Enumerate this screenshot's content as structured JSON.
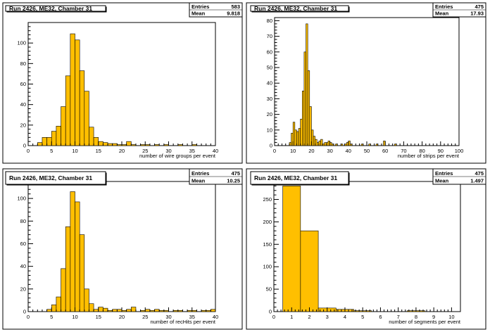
{
  "panels": [
    {
      "title": "Run 2426, ME32, Chamber 31",
      "stats": {
        "entries_label": "Entries",
        "entries": "583",
        "mean_label": "Mean",
        "mean": "9.818"
      }
    },
    {
      "title": "Run 2426, ME32, Chamber 31",
      "stats": {
        "entries_label": "Entries",
        "entries": "475",
        "mean_label": "Mean",
        "mean": "17.93"
      }
    },
    {
      "title": "Run 2426, ME32, Chamber 31",
      "stats": {
        "entries_label": "Entries",
        "entries": "475",
        "mean_label": "Mean",
        "mean": "10.25"
      }
    },
    {
      "title": "Run 2426, ME32, Chamber 31",
      "stats": {
        "entries_label": "Entries",
        "entries": "475",
        "mean_label": "Mean",
        "mean": "1.497"
      }
    }
  ],
  "chart_data": [
    {
      "type": "bar",
      "subtype": "histogram",
      "xlabel": "number of wire groups per event",
      "ylabel": "",
      "xlim": [
        0,
        40
      ],
      "ylim": [
        0,
        120
      ],
      "x_ticks": [
        0,
        5,
        10,
        15,
        20,
        25,
        30,
        35,
        40
      ],
      "y_ticks": [
        0,
        20,
        40,
        60,
        80,
        100
      ],
      "bin_width": 1,
      "bins": [
        [
          0,
          0
        ],
        [
          1,
          0
        ],
        [
          2,
          3
        ],
        [
          3,
          8
        ],
        [
          4,
          8
        ],
        [
          5,
          14
        ],
        [
          6,
          19
        ],
        [
          7,
          38
        ],
        [
          8,
          68
        ],
        [
          9,
          109
        ],
        [
          10,
          103
        ],
        [
          11,
          73
        ],
        [
          12,
          53
        ],
        [
          13,
          18
        ],
        [
          14,
          8
        ],
        [
          15,
          4
        ],
        [
          16,
          3
        ],
        [
          17,
          2
        ],
        [
          18,
          2
        ],
        [
          19,
          1
        ],
        [
          20,
          1
        ],
        [
          21,
          4
        ],
        [
          22,
          1
        ],
        [
          23,
          0
        ],
        [
          24,
          1
        ],
        [
          25,
          1
        ],
        [
          26,
          0
        ],
        [
          27,
          1
        ],
        [
          28,
          0
        ],
        [
          29,
          1
        ],
        [
          30,
          0
        ],
        [
          31,
          0
        ],
        [
          32,
          1
        ],
        [
          33,
          0
        ],
        [
          34,
          0
        ],
        [
          35,
          1
        ],
        [
          36,
          0
        ],
        [
          37,
          0
        ],
        [
          38,
          0
        ],
        [
          39,
          0
        ]
      ],
      "fill_color": "#ffbf00",
      "stroke_color": "#000000",
      "grid": false
    },
    {
      "type": "bar",
      "subtype": "histogram",
      "xlabel": "number of strips per event",
      "ylabel": "",
      "xlim": [
        0,
        100
      ],
      "ylim": [
        0,
        82
      ],
      "x_ticks": [
        0,
        10,
        20,
        30,
        40,
        50,
        60,
        70,
        80,
        90,
        100
      ],
      "y_ticks": [
        0,
        10,
        20,
        30,
        40,
        50,
        60,
        70,
        80
      ],
      "bin_width": 1,
      "bins": [
        [
          8,
          2
        ],
        [
          9,
          8
        ],
        [
          10,
          15
        ],
        [
          11,
          10
        ],
        [
          12,
          9
        ],
        [
          13,
          11
        ],
        [
          14,
          17
        ],
        [
          15,
          35
        ],
        [
          16,
          60
        ],
        [
          17,
          78
        ],
        [
          18,
          48
        ],
        [
          19,
          25
        ],
        [
          20,
          10
        ],
        [
          21,
          6
        ],
        [
          22,
          4
        ],
        [
          23,
          2
        ],
        [
          24,
          3
        ],
        [
          25,
          4
        ],
        [
          26,
          1
        ],
        [
          27,
          2
        ],
        [
          28,
          2
        ],
        [
          29,
          3
        ],
        [
          30,
          2
        ],
        [
          31,
          1
        ],
        [
          33,
          1
        ],
        [
          36,
          1
        ],
        [
          38,
          1
        ],
        [
          39,
          2
        ],
        [
          40,
          3
        ],
        [
          41,
          1
        ],
        [
          47,
          1
        ],
        [
          51,
          1
        ],
        [
          55,
          1
        ],
        [
          59,
          3
        ],
        [
          65,
          1
        ]
      ],
      "fill_color": "#ffbf00",
      "stroke_color": "#000000",
      "grid": false
    },
    {
      "type": "bar",
      "subtype": "histogram",
      "xlabel": "number of recHits per event",
      "ylabel": "",
      "xlim": [
        0,
        40
      ],
      "ylim": [
        0,
        115
      ],
      "x_ticks": [
        0,
        5,
        10,
        15,
        20,
        25,
        30,
        35,
        40
      ],
      "y_ticks": [
        0,
        20,
        40,
        60,
        80,
        100
      ],
      "bin_width": 1,
      "bins": [
        [
          4,
          2
        ],
        [
          5,
          6
        ],
        [
          6,
          13
        ],
        [
          7,
          38
        ],
        [
          8,
          75
        ],
        [
          9,
          106
        ],
        [
          10,
          97
        ],
        [
          11,
          68
        ],
        [
          12,
          20
        ],
        [
          13,
          7
        ],
        [
          14,
          2
        ],
        [
          15,
          4
        ],
        [
          16,
          3
        ],
        [
          17,
          1
        ],
        [
          18,
          2
        ],
        [
          19,
          2
        ],
        [
          20,
          1
        ],
        [
          21,
          2
        ],
        [
          22,
          4
        ],
        [
          23,
          0
        ],
        [
          24,
          1
        ],
        [
          25,
          2
        ],
        [
          26,
          1
        ],
        [
          27,
          2
        ],
        [
          28,
          1
        ],
        [
          29,
          1
        ],
        [
          30,
          0
        ],
        [
          31,
          1
        ],
        [
          32,
          1
        ],
        [
          33,
          0
        ],
        [
          34,
          1
        ],
        [
          35,
          1
        ],
        [
          36,
          0
        ],
        [
          37,
          1
        ],
        [
          38,
          1
        ],
        [
          39,
          2
        ]
      ],
      "fill_color": "#ffbf00",
      "stroke_color": "#000000",
      "grid": false
    },
    {
      "type": "bar",
      "subtype": "histogram",
      "xlabel": "number of segments per event",
      "ylabel": "",
      "xlim": [
        0,
        10.5
      ],
      "ylim": [
        0,
        290
      ],
      "x_ticks": [
        0,
        1,
        2,
        3,
        4,
        5,
        6,
        7,
        8,
        9,
        10
      ],
      "y_ticks": [
        0,
        50,
        100,
        150,
        200,
        250
      ],
      "bin_width": 1,
      "bins": [
        [
          0.5,
          280
        ],
        [
          1.5,
          180
        ],
        [
          2.5,
          8
        ],
        [
          3.5,
          5
        ],
        [
          4.5,
          2
        ],
        [
          5.5,
          0
        ],
        [
          6.5,
          0
        ],
        [
          7.5,
          2
        ],
        [
          8.5,
          0
        ],
        [
          9.5,
          0
        ]
      ],
      "fill_color": "#ffbf00",
      "stroke_color": "#000000",
      "grid": false
    }
  ]
}
